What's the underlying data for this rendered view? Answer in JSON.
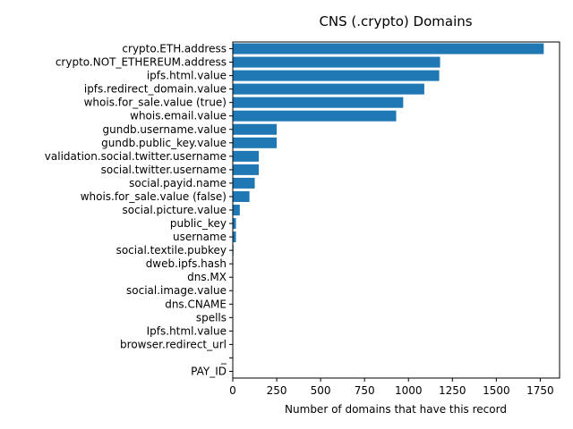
{
  "chart_data": {
    "type": "bar",
    "orientation": "horizontal",
    "title": "CNS (.crypto) Domains",
    "xlabel": "Number of domains that have this record",
    "ylabel": "",
    "xlim": [
      0,
      1860
    ],
    "xticks": [
      0,
      250,
      500,
      750,
      1000,
      1250,
      1500,
      1750
    ],
    "grid": false,
    "bar_color": "#1f77b4",
    "categories": [
      "crypto.ETH.address",
      "crypto.NOT_ETHEREUM.address",
      "ipfs.html.value",
      "ipfs.redirect_domain.value",
      "whois.for_sale.value (true)",
      "whois.email.value",
      "gundb.username.value",
      "gundb.public_key.value",
      "validation.social.twitter.username",
      "social.twitter.username",
      "social.payid.name",
      "whois.for_sale.value (false)",
      "social.picture.value",
      "public_key",
      "username",
      "social.textile.pubkey",
      "dweb.ipfs.hash",
      "dns.MX",
      "social.image.value",
      "dns.CNAME",
      "spells",
      "Ipfs.html.value",
      "browser.redirect_url",
      "_",
      "PAY_ID"
    ],
    "values": [
      1770,
      1180,
      1175,
      1090,
      970,
      930,
      250,
      250,
      148,
      148,
      125,
      95,
      40,
      18,
      18,
      4,
      3,
      2,
      2,
      2,
      1,
      1,
      1,
      1,
      1
    ]
  }
}
